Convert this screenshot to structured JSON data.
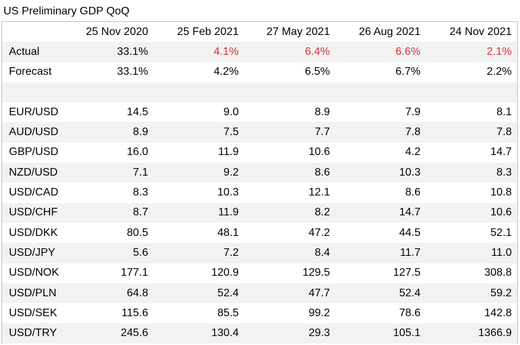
{
  "title": "US Preliminary GDP QoQ",
  "colors": {
    "highlight_red": "#d13438",
    "stripe": "#f2f2f2"
  },
  "columns": [
    "25 Nov 2020",
    "25 Feb 2021",
    "27 May 2021",
    "26 Aug 2021",
    "24 Nov 2021"
  ],
  "actual": {
    "label": "Actual",
    "values": [
      "33.1%",
      "4.1%",
      "6.4%",
      "6.6%",
      "2.1%"
    ],
    "red": [
      false,
      true,
      true,
      true,
      true
    ]
  },
  "forecast": {
    "label": "Forecast",
    "values": [
      "33.1%",
      "4.2%",
      "6.5%",
      "6.7%",
      "2.2%"
    ]
  },
  "pairs": [
    {
      "label": "EUR/USD",
      "values": [
        "14.5",
        "9.0",
        "8.9",
        "7.9",
        "8.1"
      ]
    },
    {
      "label": "AUD/USD",
      "values": [
        "8.9",
        "7.5",
        "7.7",
        "7.8",
        "7.8"
      ]
    },
    {
      "label": "GBP/USD",
      "values": [
        "16.0",
        "11.9",
        "10.6",
        "4.2",
        "14.7"
      ]
    },
    {
      "label": "NZD/USD",
      "values": [
        "7.1",
        "9.2",
        "8.6",
        "10.3",
        "8.3"
      ]
    },
    {
      "label": "USD/CAD",
      "values": [
        "8.3",
        "10.3",
        "12.1",
        "8.6",
        "10.8"
      ]
    },
    {
      "label": "USD/CHF",
      "values": [
        "8.7",
        "11.9",
        "8.2",
        "14.7",
        "10.6"
      ]
    },
    {
      "label": "USD/DKK",
      "values": [
        "80.5",
        "48.1",
        "47.2",
        "44.5",
        "52.1"
      ]
    },
    {
      "label": "USD/JPY",
      "values": [
        "5.6",
        "7.2",
        "8.4",
        "11.7",
        "11.0"
      ]
    },
    {
      "label": "USD/NOK",
      "values": [
        "177.1",
        "120.9",
        "129.5",
        "127.5",
        "308.8"
      ]
    },
    {
      "label": "USD/PLN",
      "values": [
        "64.8",
        "52.4",
        "47.7",
        "52.4",
        "59.2"
      ]
    },
    {
      "label": "USD/SEK",
      "values": [
        "115.6",
        "85.5",
        "99.2",
        "78.6",
        "142.8"
      ]
    },
    {
      "label": "USD/TRY",
      "values": [
        "245.6",
        "130.4",
        "29.3",
        "105.1",
        "1366.9"
      ]
    }
  ]
}
